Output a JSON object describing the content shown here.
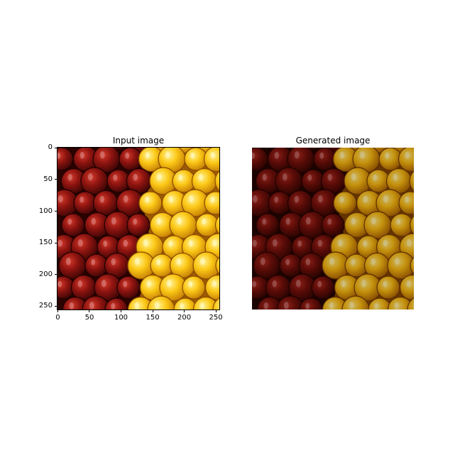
{
  "figure": {
    "panels": [
      {
        "title": "Input image",
        "x_ticks": [
          "0",
          "50",
          "100",
          "150",
          "200",
          "250"
        ],
        "y_ticks": [
          "0",
          "50",
          "100",
          "150",
          "200",
          "250"
        ],
        "image": "apples-red-and-yellow",
        "show_axes": true
      },
      {
        "title": "Generated image",
        "image": "apples-red-and-yellow-darkened",
        "show_axes": false
      }
    ]
  }
}
